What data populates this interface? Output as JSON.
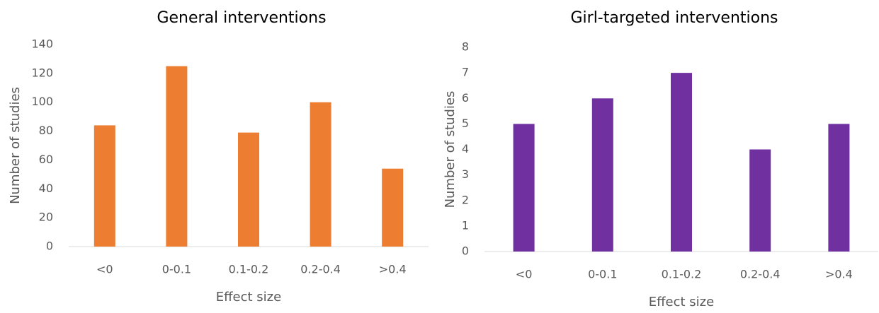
{
  "chart_data": [
    {
      "type": "bar",
      "title": "General interventions",
      "x_label": "Effect size",
      "y_label": "Number of studies",
      "categories": [
        "<0",
        "0-0.1",
        "0.1-0.2",
        "0.2-0.4",
        ">0.4"
      ],
      "values": [
        84,
        125,
        79,
        100,
        54
      ],
      "color": "#ed7d31",
      "ylim": [
        0,
        140
      ],
      "yticks": [
        0,
        20,
        40,
        60,
        80,
        100,
        120,
        140
      ],
      "grid": false
    },
    {
      "type": "bar",
      "title": "Girl-targeted interventions",
      "x_label": "Effect size",
      "y_label": "Number of studies",
      "categories": [
        "<0",
        "0-0.1",
        "0.1-0.2",
        "0.2-0.4",
        ">0.4"
      ],
      "values": [
        5,
        6,
        7,
        4,
        5
      ],
      "color": "#7030a0",
      "ylim": [
        0,
        8
      ],
      "yticks": [
        0,
        1,
        2,
        3,
        4,
        5,
        6,
        7,
        8
      ],
      "grid": false
    }
  ]
}
